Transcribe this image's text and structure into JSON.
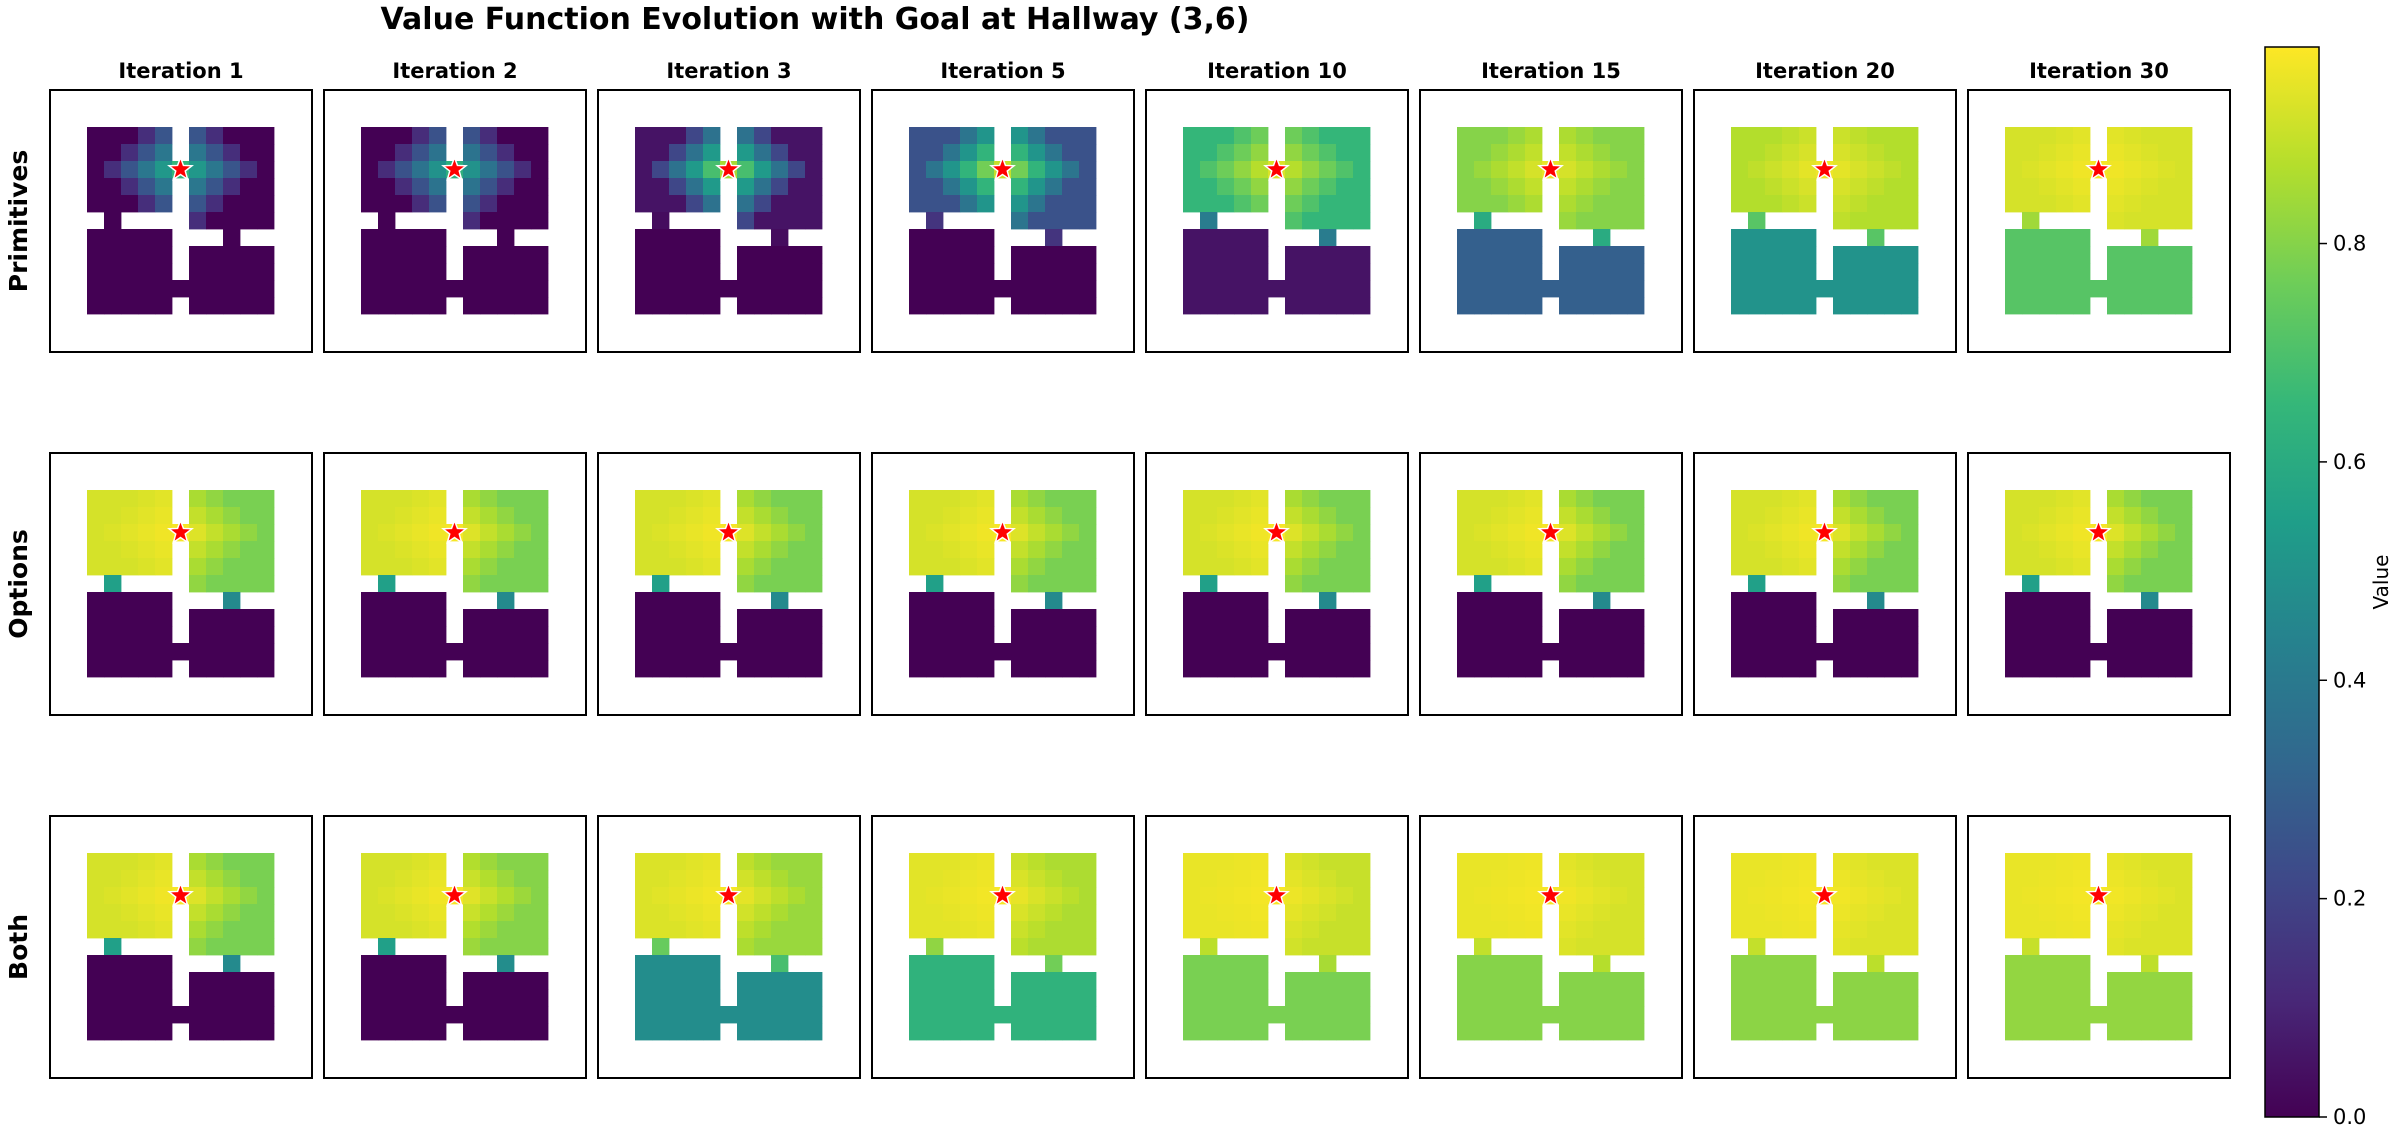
{
  "chart_data": {
    "type": "heatmap",
    "title": "Value Function Evolution with Goal at Hallway (3,6)",
    "columns": [
      "Iteration 1",
      "Iteration 2",
      "Iteration 3",
      "Iteration 5",
      "Iteration 10",
      "Iteration 15",
      "Iteration 20",
      "Iteration 30"
    ],
    "rows": [
      "Primitives",
      "Options",
      "Both"
    ],
    "goal": {
      "row": 3,
      "col": 6
    },
    "grid_size": [
      13,
      13
    ],
    "colorbar": {
      "label": "Value",
      "colormap": "viridis",
      "range": [
        0.0,
        0.98
      ],
      "ticks": [
        0.0,
        0.2,
        0.4,
        0.6,
        0.8
      ],
      "tick_labels": [
        "0.0",
        "0.2",
        "0.4",
        "0.6",
        "0.8"
      ]
    },
    "panel_values_approx": {
      "Primitives": {
        "Iteration 1": {
          "top_left": 0.0,
          "top_right": 0.0,
          "bottom_left": 0.0,
          "bottom_right": 0.0,
          "near_goal": 0.65
        },
        "Iteration 2": {
          "top_left": 0.0,
          "top_right": 0.0,
          "bottom_left": 0.0,
          "bottom_right": 0.0,
          "near_goal": 0.62
        },
        "Iteration 3": {
          "top_left": 0.05,
          "top_right": 0.05,
          "bottom_left": 0.0,
          "bottom_right": 0.0,
          "near_goal": 0.85
        },
        "Iteration 5": {
          "top_left": 0.25,
          "top_right": 0.25,
          "bottom_left": 0.0,
          "bottom_right": 0.0,
          "near_goal": 0.9
        },
        "Iteration 10": {
          "top_left": 0.65,
          "top_right": 0.65,
          "bottom_left": 0.05,
          "bottom_right": 0.05,
          "near_goal": 0.93
        },
        "Iteration 15": {
          "top_left": 0.8,
          "top_right": 0.8,
          "bottom_left": 0.3,
          "bottom_right": 0.3,
          "near_goal": 0.95
        },
        "Iteration 20": {
          "top_left": 0.87,
          "top_right": 0.87,
          "bottom_left": 0.5,
          "bottom_right": 0.5,
          "near_goal": 0.96
        },
        "Iteration 30": {
          "top_left": 0.92,
          "top_right": 0.92,
          "bottom_left": 0.72,
          "bottom_right": 0.72,
          "near_goal": 0.97
        }
      },
      "Options": {
        "Iteration 1": {
          "top_left": 0.92,
          "top_right": 0.78,
          "bottom_left": 0.0,
          "bottom_right": 0.0,
          "near_goal": 0.97
        },
        "Iteration 2": {
          "top_left": 0.92,
          "top_right": 0.78,
          "bottom_left": 0.0,
          "bottom_right": 0.0,
          "near_goal": 0.97
        },
        "Iteration 3": {
          "top_left": 0.92,
          "top_right": 0.78,
          "bottom_left": 0.0,
          "bottom_right": 0.0,
          "near_goal": 0.97
        },
        "Iteration 5": {
          "top_left": 0.92,
          "top_right": 0.78,
          "bottom_left": 0.0,
          "bottom_right": 0.0,
          "near_goal": 0.97
        },
        "Iteration 10": {
          "top_left": 0.92,
          "top_right": 0.78,
          "bottom_left": 0.0,
          "bottom_right": 0.0,
          "near_goal": 0.97
        },
        "Iteration 15": {
          "top_left": 0.92,
          "top_right": 0.78,
          "bottom_left": 0.0,
          "bottom_right": 0.0,
          "near_goal": 0.97
        },
        "Iteration 20": {
          "top_left": 0.92,
          "top_right": 0.78,
          "bottom_left": 0.0,
          "bottom_right": 0.0,
          "near_goal": 0.97
        },
        "Iteration 30": {
          "top_left": 0.92,
          "top_right": 0.78,
          "bottom_left": 0.0,
          "bottom_right": 0.0,
          "near_goal": 0.97
        }
      },
      "Both": {
        "Iteration 1": {
          "top_left": 0.92,
          "top_right": 0.78,
          "bottom_left": 0.0,
          "bottom_right": 0.0,
          "near_goal": 0.97
        },
        "Iteration 2": {
          "top_left": 0.92,
          "top_right": 0.8,
          "bottom_left": 0.0,
          "bottom_right": 0.0,
          "near_goal": 0.97
        },
        "Iteration 3": {
          "top_left": 0.93,
          "top_right": 0.83,
          "bottom_left": 0.48,
          "bottom_right": 0.48,
          "near_goal": 0.97
        },
        "Iteration 5": {
          "top_left": 0.94,
          "top_right": 0.86,
          "bottom_left": 0.63,
          "bottom_right": 0.63,
          "near_goal": 0.97
        },
        "Iteration 10": {
          "top_left": 0.95,
          "top_right": 0.9,
          "bottom_left": 0.78,
          "bottom_right": 0.78,
          "near_goal": 0.97
        },
        "Iteration 15": {
          "top_left": 0.95,
          "top_right": 0.92,
          "bottom_left": 0.8,
          "bottom_right": 0.8,
          "near_goal": 0.97
        },
        "Iteration 20": {
          "top_left": 0.95,
          "top_right": 0.93,
          "bottom_left": 0.81,
          "bottom_right": 0.81,
          "near_goal": 0.97
        },
        "Iteration 30": {
          "top_left": 0.95,
          "top_right": 0.93,
          "bottom_left": 0.82,
          "bottom_right": 0.82,
          "near_goal": 0.97
        }
      }
    }
  },
  "colors": {
    "goal_star": "#ff0000",
    "wall": "#ffffff",
    "frame": "#000000"
  }
}
